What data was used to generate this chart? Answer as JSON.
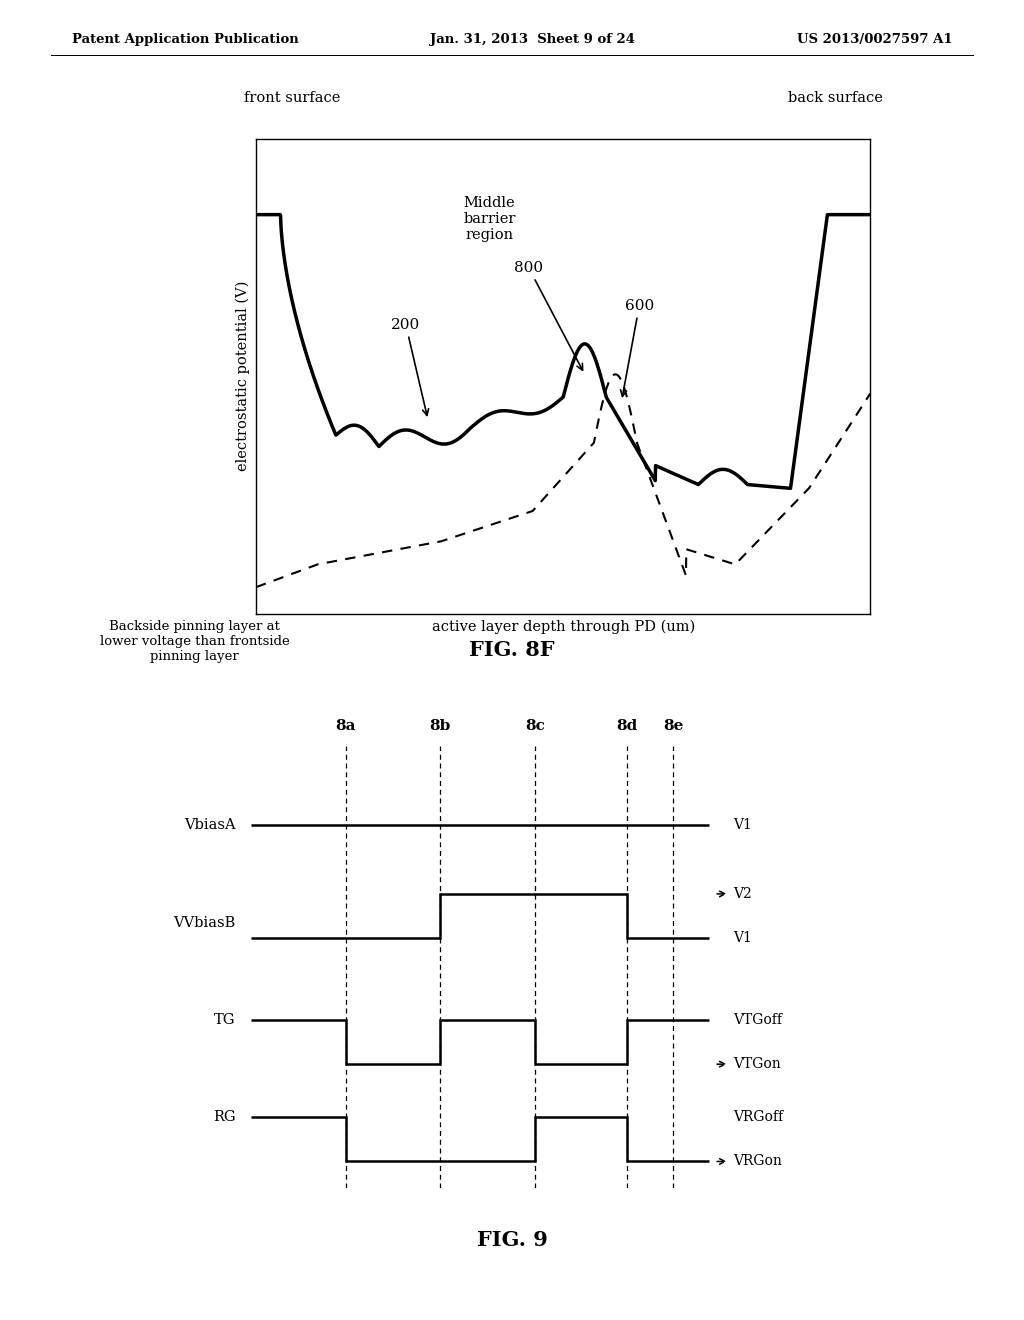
{
  "header_left": "Patent Application Publication",
  "header_center": "Jan. 31, 2013  Sheet 9 of 24",
  "header_right": "US 2013/0027597 A1",
  "fig8f_label": "FIG. 8F",
  "fig9_label": "FIG. 9",
  "backside_note": "Backside pinning layer at\nlower voltage than frontside\npinning layer",
  "front_surface": "front surface",
  "back_surface": "back surface",
  "ylabel": "electrostatic potential (V)",
  "xlabel": "active layer depth through PD (um)",
  "annotation_200": "200",
  "annotation_600": "600",
  "annotation_800": "800",
  "annotation_middle": "Middle\nbarrier\nregion",
  "timing_labels": [
    "8a",
    "8b",
    "8c",
    "8d",
    "8e"
  ],
  "signal_labels": [
    "VbiasA",
    "VVbiasB",
    "TG",
    "RG"
  ],
  "v1_label": "V1",
  "v2_label": "V2",
  "vtgoff_label": "VTGoff",
  "vtgon_label": "VTGon",
  "vrgoff_label": "VRGoff",
  "vrgon_label": "VRGon",
  "bg_color": "#ffffff",
  "line_color": "#000000"
}
